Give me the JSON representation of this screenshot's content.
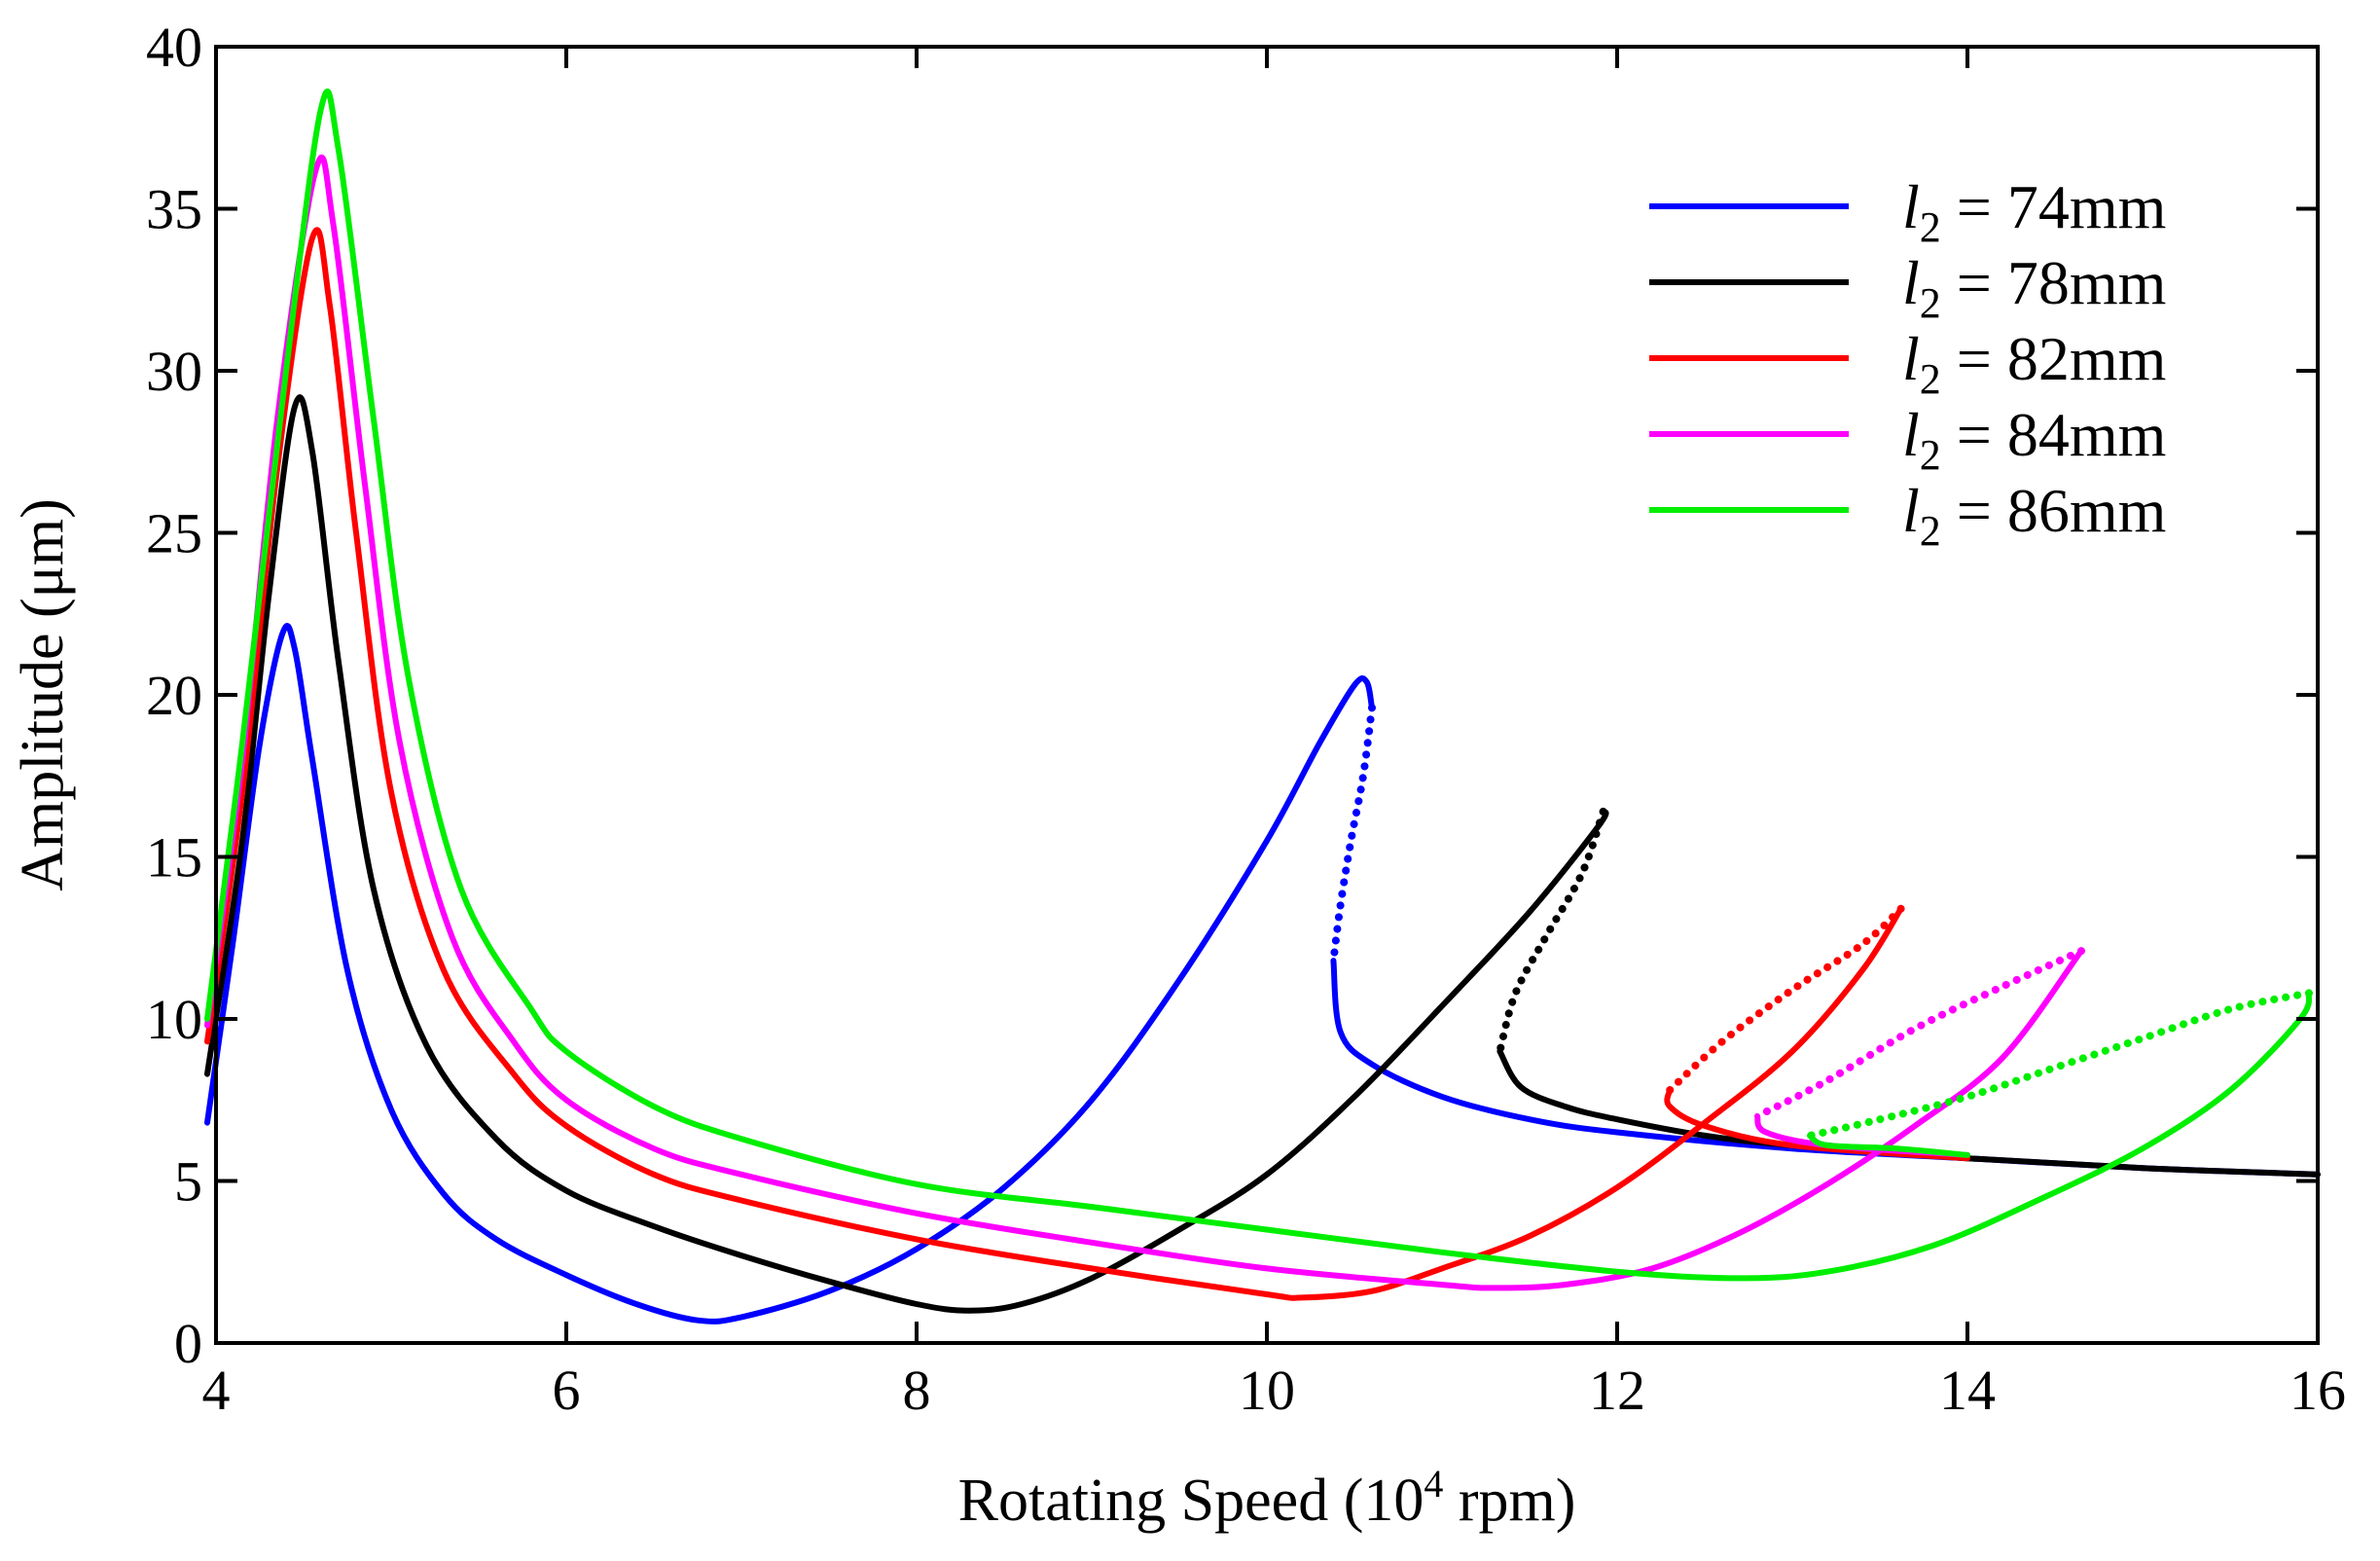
{
  "chart_data": {
    "type": "line",
    "title": "",
    "xlabel": "Rotating Speed (10",
    "xlabel_sup": "4",
    "xlabel_tail": " rpm)",
    "ylabel": "Amplitude (μm)",
    "xlim": [
      4,
      16
    ],
    "ylim": [
      0,
      40
    ],
    "xticks": [
      4,
      6,
      8,
      10,
      12,
      14,
      16
    ],
    "yticks": [
      0,
      5,
      10,
      15,
      20,
      25,
      30,
      35,
      40
    ],
    "legend_position": "top-right",
    "series": [
      {
        "name": "l2 = 74mm",
        "legend_var": "l",
        "legend_sub": "2",
        "legend_rest": " = 74mm",
        "color": "#0000ff",
        "stable": [
          [
            3.95,
            6.8
          ],
          [
            4.1,
            12.5
          ],
          [
            4.25,
            18.5
          ],
          [
            4.38,
            21.9
          ],
          [
            4.45,
            21.4
          ],
          [
            4.55,
            18.0
          ],
          [
            4.75,
            11.5
          ],
          [
            5.0,
            7.2
          ],
          [
            5.3,
            4.6
          ],
          [
            5.6,
            3.2
          ],
          [
            6.0,
            2.1
          ],
          [
            6.4,
            1.2
          ],
          [
            6.75,
            0.7
          ],
          [
            7.0,
            0.8
          ],
          [
            7.5,
            1.6
          ],
          [
            8.0,
            2.9
          ],
          [
            8.5,
            4.8
          ],
          [
            9.0,
            7.5
          ],
          [
            9.5,
            11.2
          ],
          [
            10.0,
            15.5
          ],
          [
            10.3,
            18.5
          ],
          [
            10.5,
            20.3
          ],
          [
            10.57,
            20.4
          ],
          [
            10.6,
            19.6
          ]
        ],
        "unstable": [
          [
            10.6,
            19.6
          ],
          [
            10.55,
            17.5
          ],
          [
            10.48,
            15.5
          ],
          [
            10.42,
            13.5
          ],
          [
            10.38,
            11.8
          ]
        ],
        "stable2": [
          [
            10.38,
            11.8
          ],
          [
            10.42,
            9.6
          ],
          [
            10.6,
            8.6
          ],
          [
            11.0,
            7.6
          ],
          [
            11.5,
            6.9
          ],
          [
            12.0,
            6.5
          ],
          [
            13.0,
            6.0
          ],
          [
            14.0,
            5.7
          ],
          [
            15.0,
            5.4
          ],
          [
            16.0,
            5.2
          ]
        ]
      },
      {
        "name": "l2 = 78mm",
        "legend_var": "l",
        "legend_sub": "2",
        "legend_rest": " = 78mm",
        "color": "#000000",
        "stable": [
          [
            3.95,
            8.3
          ],
          [
            4.15,
            15.5
          ],
          [
            4.3,
            23.0
          ],
          [
            4.45,
            28.9
          ],
          [
            4.55,
            27.5
          ],
          [
            4.7,
            21.0
          ],
          [
            4.9,
            14.0
          ],
          [
            5.2,
            9.2
          ],
          [
            5.6,
            6.3
          ],
          [
            6.0,
            4.7
          ],
          [
            6.5,
            3.6
          ],
          [
            7.0,
            2.7
          ],
          [
            7.5,
            1.9
          ],
          [
            8.0,
            1.2
          ],
          [
            8.3,
            1.0
          ],
          [
            8.6,
            1.2
          ],
          [
            9.0,
            2.0
          ],
          [
            9.5,
            3.5
          ],
          [
            10.0,
            5.2
          ],
          [
            10.5,
            7.6
          ],
          [
            11.0,
            10.4
          ],
          [
            11.5,
            13.3
          ],
          [
            11.9,
            16.0
          ],
          [
            11.92,
            16.4
          ]
        ],
        "unstable": [
          [
            11.92,
            16.4
          ],
          [
            11.8,
            14.5
          ],
          [
            11.6,
            12.6
          ],
          [
            11.42,
            10.8
          ],
          [
            11.33,
            9.0
          ]
        ],
        "stable2": [
          [
            11.33,
            9.0
          ],
          [
            11.45,
            7.9
          ],
          [
            11.7,
            7.3
          ],
          [
            12.0,
            6.9
          ],
          [
            12.5,
            6.4
          ],
          [
            13.0,
            6.1
          ],
          [
            14.0,
            5.7
          ],
          [
            15.0,
            5.4
          ],
          [
            16.0,
            5.2
          ]
        ]
      },
      {
        "name": "l2 = 82mm",
        "legend_var": "l",
        "legend_sub": "2",
        "legend_rest": " = 82mm",
        "color": "#ff0000",
        "stable": [
          [
            3.95,
            9.3
          ],
          [
            4.15,
            17.0
          ],
          [
            4.35,
            27.0
          ],
          [
            4.55,
            34.1
          ],
          [
            4.65,
            32.0
          ],
          [
            4.8,
            25.0
          ],
          [
            5.0,
            17.0
          ],
          [
            5.3,
            11.5
          ],
          [
            5.7,
            8.3
          ],
          [
            6.0,
            6.7
          ],
          [
            6.5,
            5.2
          ],
          [
            7.0,
            4.4
          ],
          [
            8.0,
            3.2
          ],
          [
            9.0,
            2.3
          ],
          [
            10.0,
            1.5
          ],
          [
            10.2,
            1.4
          ],
          [
            10.6,
            1.6
          ],
          [
            11.0,
            2.3
          ],
          [
            11.5,
            3.3
          ],
          [
            12.0,
            4.8
          ],
          [
            12.5,
            6.8
          ],
          [
            13.0,
            9.0
          ],
          [
            13.4,
            11.5
          ],
          [
            13.62,
            13.4
          ]
        ],
        "unstable": [
          [
            13.62,
            13.4
          ],
          [
            13.4,
            12.3
          ],
          [
            13.0,
            10.9
          ],
          [
            12.6,
            9.3
          ],
          [
            12.3,
            7.8
          ]
        ],
        "stable2": [
          [
            12.3,
            7.8
          ],
          [
            12.3,
            7.3
          ],
          [
            12.5,
            6.7
          ],
          [
            13.0,
            6.1
          ],
          [
            14.0,
            5.7
          ]
        ]
      },
      {
        "name": "l2 = 84mm",
        "legend_var": "l",
        "legend_sub": "2",
        "legend_rest": " = 84mm",
        "color": "#ff00ff",
        "stable": [
          [
            3.95,
            9.8
          ],
          [
            4.15,
            18.0
          ],
          [
            4.35,
            28.5
          ],
          [
            4.57,
            36.2
          ],
          [
            4.67,
            34.5
          ],
          [
            4.85,
            26.5
          ],
          [
            5.05,
            18.5
          ],
          [
            5.35,
            12.5
          ],
          [
            5.7,
            9.3
          ],
          [
            6.0,
            7.5
          ],
          [
            6.5,
            6.0
          ],
          [
            7.0,
            5.2
          ],
          [
            8.0,
            4.0
          ],
          [
            9.0,
            3.1
          ],
          [
            10.0,
            2.3
          ],
          [
            11.0,
            1.8
          ],
          [
            11.3,
            1.7
          ],
          [
            11.7,
            1.8
          ],
          [
            12.2,
            2.3
          ],
          [
            12.7,
            3.4
          ],
          [
            13.2,
            4.9
          ],
          [
            13.7,
            6.7
          ],
          [
            14.2,
            8.8
          ],
          [
            14.65,
            12.1
          ]
        ],
        "unstable": [
          [
            14.65,
            12.1
          ],
          [
            14.2,
            11.0
          ],
          [
            13.7,
            9.7
          ],
          [
            13.2,
            8.1
          ],
          [
            12.8,
            7.0
          ]
        ],
        "stable2": [
          [
            12.8,
            7.0
          ],
          [
            12.85,
            6.5
          ],
          [
            13.2,
            6.1
          ],
          [
            14.0,
            5.8
          ]
        ]
      },
      {
        "name": "l2 = 86mm",
        "legend_var": "l",
        "legend_sub": "2",
        "legend_rest": " = 86mm",
        "color": "#00ee00",
        "stable": [
          [
            3.95,
            10.0
          ],
          [
            4.15,
            18.5
          ],
          [
            4.4,
            30.0
          ],
          [
            4.6,
            38.1
          ],
          [
            4.7,
            36.8
          ],
          [
            4.9,
            28.5
          ],
          [
            5.1,
            20.5
          ],
          [
            5.4,
            14.0
          ],
          [
            5.8,
            10.3
          ],
          [
            6.0,
            9.0
          ],
          [
            6.5,
            7.3
          ],
          [
            7.0,
            6.3
          ],
          [
            8.0,
            4.9
          ],
          [
            9.0,
            4.2
          ],
          [
            10.0,
            3.5
          ],
          [
            11.0,
            2.8
          ],
          [
            12.0,
            2.2
          ],
          [
            12.7,
            2.0
          ],
          [
            13.2,
            2.2
          ],
          [
            13.8,
            3.0
          ],
          [
            14.4,
            4.4
          ],
          [
            15.0,
            6.0
          ],
          [
            15.5,
            7.8
          ],
          [
            15.9,
            10.0
          ],
          [
            15.95,
            10.8
          ]
        ],
        "unstable": [
          [
            15.95,
            10.8
          ],
          [
            15.5,
            10.3
          ],
          [
            15.0,
            9.4
          ],
          [
            14.5,
            8.5
          ],
          [
            14.0,
            7.6
          ],
          [
            13.5,
            6.9
          ],
          [
            13.1,
            6.4
          ]
        ],
        "stable2": [
          [
            13.1,
            6.4
          ],
          [
            13.2,
            6.1
          ],
          [
            13.6,
            6.0
          ],
          [
            14.0,
            5.8
          ]
        ]
      }
    ]
  }
}
